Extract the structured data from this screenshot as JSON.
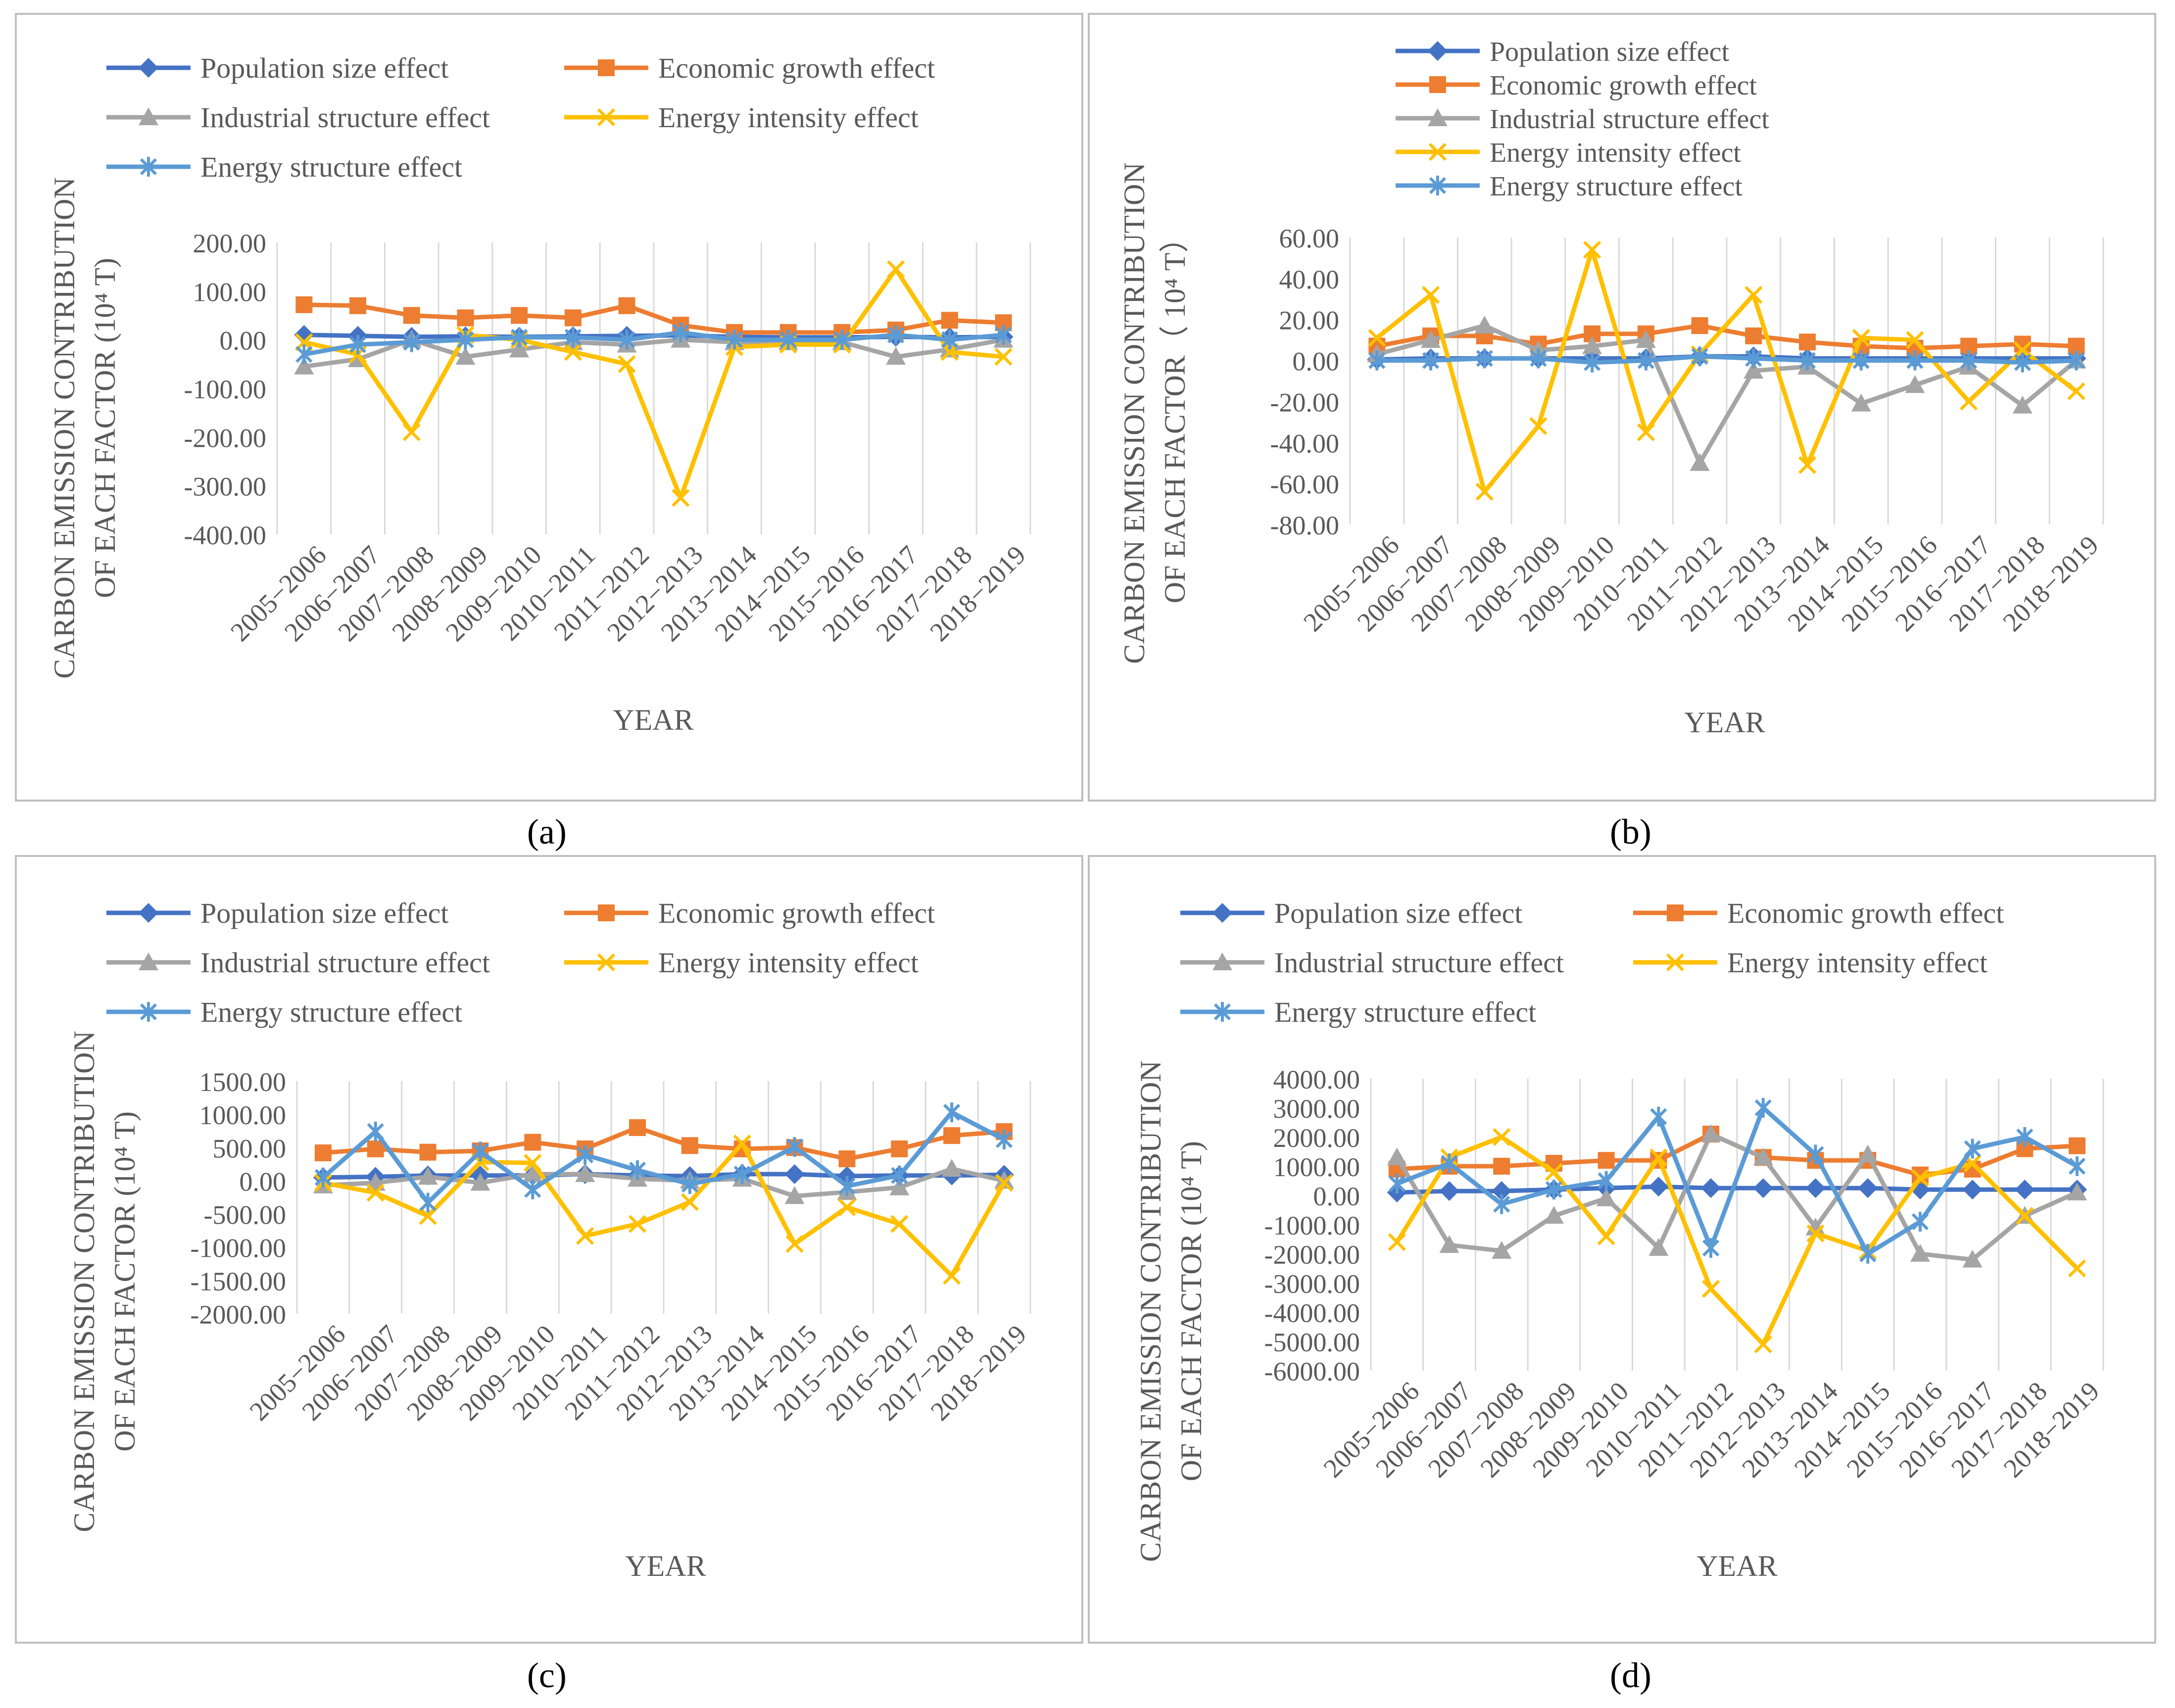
{
  "colors": {
    "population": "#4472C4",
    "economic": "#ED7D31",
    "industrial": "#A5A5A5",
    "intensity": "#FFC000",
    "structure": "#5B9BD5",
    "grid": "#D9D9D9",
    "tick": "#595959",
    "frame": "#BFBFBF"
  },
  "chart_data": [
    {
      "type": "line",
      "panel_label": "(a)",
      "ylabel_line1": "CARBON EMISSION CONTRIBUTION",
      "ylabel_line2": "OF EACH FACTOR (10⁴ T)",
      "xlabel": "YEAR",
      "categories": [
        "2005−2006",
        "2006−2007",
        "2007−2008",
        "2008−2009",
        "2009−2010",
        "2010−2011",
        "2011−2012",
        "2012−2013",
        "2013−2014",
        "2014−2015",
        "2015−2016",
        "2016−2017",
        "2017−2018",
        "2018−2019"
      ],
      "ylim": [
        -400,
        200
      ],
      "yticks": [
        200,
        100,
        0,
        -100,
        -200,
        -300,
        -400
      ],
      "ytick_labels": [
        "200.00",
        "100.00",
        "0.00",
        "-100.00",
        "-200.00",
        "-300.00",
        "-400.00"
      ],
      "legend_layout": "two-column",
      "series": [
        {
          "name": "Population size effect",
          "key": "population",
          "marker": "diamond",
          "values": [
            10,
            8,
            6,
            7,
            6,
            7,
            8,
            9,
            6,
            5,
            5,
            6,
            5,
            6
          ]
        },
        {
          "name": "Economic growth effect",
          "key": "economic",
          "marker": "square",
          "values": [
            72,
            70,
            50,
            45,
            50,
            45,
            70,
            30,
            15,
            15,
            15,
            20,
            40,
            35
          ]
        },
        {
          "name": "Industrial structure effect",
          "key": "industrial",
          "marker": "triangle",
          "values": [
            -55,
            -40,
            0,
            -35,
            -20,
            -5,
            -10,
            0,
            -5,
            -5,
            -5,
            -35,
            -20,
            0
          ]
        },
        {
          "name": "Energy intensity effect",
          "key": "intensity",
          "marker": "x",
          "values": [
            -5,
            -30,
            -190,
            10,
            0,
            -25,
            -50,
            -325,
            -15,
            -10,
            -10,
            145,
            -25,
            -35
          ]
        },
        {
          "name": "Energy structure effect",
          "key": "structure",
          "marker": "asterisk",
          "values": [
            -30,
            -10,
            -5,
            0,
            5,
            5,
            0,
            15,
            0,
            0,
            0,
            10,
            0,
            10
          ]
        }
      ]
    },
    {
      "type": "line",
      "panel_label": "(b)",
      "ylabel_line1": "CARBON EMISSION CONTRIBUTION",
      "ylabel_line2": "OF EACH FACTOR（ 10⁴ T）",
      "xlabel": "YEAR",
      "categories": [
        "2005−2006",
        "2006−2007",
        "2007−2008",
        "2008−2009",
        "2009−2010",
        "2010−2011",
        "2011−2012",
        "2012−2013",
        "2013−2014",
        "2014−2015",
        "2015−2016",
        "2016−2017",
        "2017−2018",
        "2018−2019"
      ],
      "ylim": [
        -80,
        60
      ],
      "yticks": [
        60,
        40,
        20,
        0,
        -20,
        -40,
        -60,
        -80
      ],
      "ytick_labels": [
        "60.00",
        "40.00",
        "20.00",
        "0.00",
        "-20.00",
        "-40.00",
        "-60.00",
        "-80.00"
      ],
      "legend_layout": "single-column",
      "series": [
        {
          "name": "Population size effect",
          "key": "population",
          "marker": "diamond",
          "values": [
            0.5,
            1,
            1,
            1,
            1,
            1,
            2,
            2,
            1,
            1,
            1,
            1,
            1,
            1
          ]
        },
        {
          "name": "Economic growth effect",
          "key": "economic",
          "marker": "square",
          "values": [
            7,
            12,
            12,
            8,
            13,
            13,
            17,
            12,
            9,
            7,
            6,
            7,
            8,
            7
          ]
        },
        {
          "name": "Industrial structure effect",
          "key": "industrial",
          "marker": "triangle",
          "values": [
            3,
            10,
            17,
            5,
            7,
            10,
            -50,
            -5,
            -3,
            -21,
            -12,
            -3,
            -22,
            0
          ]
        },
        {
          "name": "Energy intensity effect",
          "key": "intensity",
          "marker": "x",
          "values": [
            11,
            32,
            -64,
            -32,
            54,
            -35,
            3,
            32,
            -51,
            11,
            10,
            -20,
            5,
            -15
          ]
        },
        {
          "name": "Energy structure effect",
          "key": "structure",
          "marker": "asterisk",
          "values": [
            0,
            0,
            1,
            1,
            -1,
            0,
            2,
            1,
            0,
            0,
            0,
            0,
            -1,
            0
          ]
        }
      ]
    },
    {
      "type": "line",
      "panel_label": "(c)",
      "ylabel_line1": "CARBON EMISSION CONTRIBUTION",
      "ylabel_line2": "OF EACH FACTOR (10⁴ T)",
      "xlabel": "YEAR",
      "categories": [
        "2005−2006",
        "2006−2007",
        "2007−2008",
        "2008−2009",
        "2009−2010",
        "2010−2011",
        "2011−2012",
        "2012−2013",
        "2013−2014",
        "2014−2015",
        "2015−2016",
        "2016−2017",
        "2017−2018",
        "2018−2019"
      ],
      "ylim": [
        -2000,
        1500
      ],
      "yticks": [
        1500,
        1000,
        500,
        0,
        -500,
        -1000,
        -1500,
        -2000
      ],
      "ytick_labels": [
        "1500.00",
        "1000.00",
        "500.00",
        "0.00",
        "-500.00",
        "-1000.00",
        "-1500.00",
        "-2000.00"
      ],
      "legend_layout": "two-column",
      "series": [
        {
          "name": "Population size effect",
          "key": "population",
          "marker": "diamond",
          "values": [
            50,
            60,
            80,
            80,
            80,
            100,
            80,
            70,
            100,
            100,
            70,
            80,
            80,
            90
          ]
        },
        {
          "name": "Economic growth effect",
          "key": "economic",
          "marker": "square",
          "values": [
            420,
            480,
            430,
            450,
            580,
            480,
            800,
            530,
            480,
            500,
            330,
            480,
            680,
            740
          ]
        },
        {
          "name": "Industrial structure effect",
          "key": "industrial",
          "marker": "triangle",
          "values": [
            -70,
            -30,
            60,
            -30,
            100,
            100,
            30,
            0,
            30,
            -230,
            -170,
            -100,
            180,
            0
          ]
        },
        {
          "name": "Energy intensity effect",
          "key": "intensity",
          "marker": "x",
          "values": [
            -30,
            -180,
            -530,
            280,
            270,
            -830,
            -650,
            -320,
            560,
            -950,
            -400,
            -650,
            -1430,
            -30
          ]
        },
        {
          "name": "Energy structure effect",
          "key": "structure",
          "marker": "asterisk",
          "values": [
            50,
            740,
            -330,
            440,
            -130,
            390,
            160,
            -50,
            100,
            510,
            -80,
            80,
            1030,
            620
          ]
        }
      ]
    },
    {
      "type": "line",
      "panel_label": "(d)",
      "ylabel_line1": "CARBON EMISSION CONTRIBUTION",
      "ylabel_line2": "OF EACH FACTOR (10⁴ T)",
      "xlabel": "YEAR",
      "categories": [
        "2005−2006",
        "2006−2007",
        "2007−2008",
        "2008−2009",
        "2009−2010",
        "2010−2011",
        "2011−2012",
        "2012−2013",
        "2013−2014",
        "2014−2015",
        "2015−2016",
        "2016−2017",
        "2017−2018",
        "2018−2019"
      ],
      "ylim": [
        -6000,
        4000
      ],
      "yticks": [
        4000,
        3000,
        2000,
        1000,
        0,
        -1000,
        -2000,
        -3000,
        -4000,
        -5000,
        -6000
      ],
      "ytick_labels": [
        "4000.00",
        "3000.00",
        "2000.00",
        "1000.00",
        "0.00",
        "-1000.00",
        "-2000.00",
        "-3000.00",
        "-4000.00",
        "-5000.00",
        "-6000.00"
      ],
      "legend_layout": "two-column",
      "series": [
        {
          "name": "Population size effect",
          "key": "population",
          "marker": "diamond",
          "values": [
            100,
            150,
            150,
            200,
            250,
            300,
            250,
            250,
            250,
            250,
            200,
            200,
            200,
            200
          ]
        },
        {
          "name": "Economic growth effect",
          "key": "economic",
          "marker": "square",
          "values": [
            900,
            1000,
            1000,
            1100,
            1200,
            1200,
            2100,
            1300,
            1200,
            1200,
            700,
            900,
            1600,
            1700
          ]
        },
        {
          "name": "Industrial structure effect",
          "key": "industrial",
          "marker": "triangle",
          "values": [
            1300,
            -1700,
            -1900,
            -700,
            -100,
            -1800,
            2100,
            1300,
            -1100,
            1400,
            -2000,
            -2200,
            -700,
            100
          ]
        },
        {
          "name": "Energy intensity effect",
          "key": "intensity",
          "marker": "x",
          "values": [
            -1600,
            1300,
            2000,
            800,
            -1400,
            1300,
            -3200,
            -5100,
            -1300,
            -1900,
            600,
            1100,
            -700,
            -2500
          ]
        },
        {
          "name": "Energy structure effect",
          "key": "structure",
          "marker": "asterisk",
          "values": [
            400,
            1100,
            -300,
            200,
            500,
            2700,
            -1800,
            3000,
            1400,
            -2000,
            -900,
            1600,
            2000,
            1000
          ]
        }
      ]
    }
  ]
}
